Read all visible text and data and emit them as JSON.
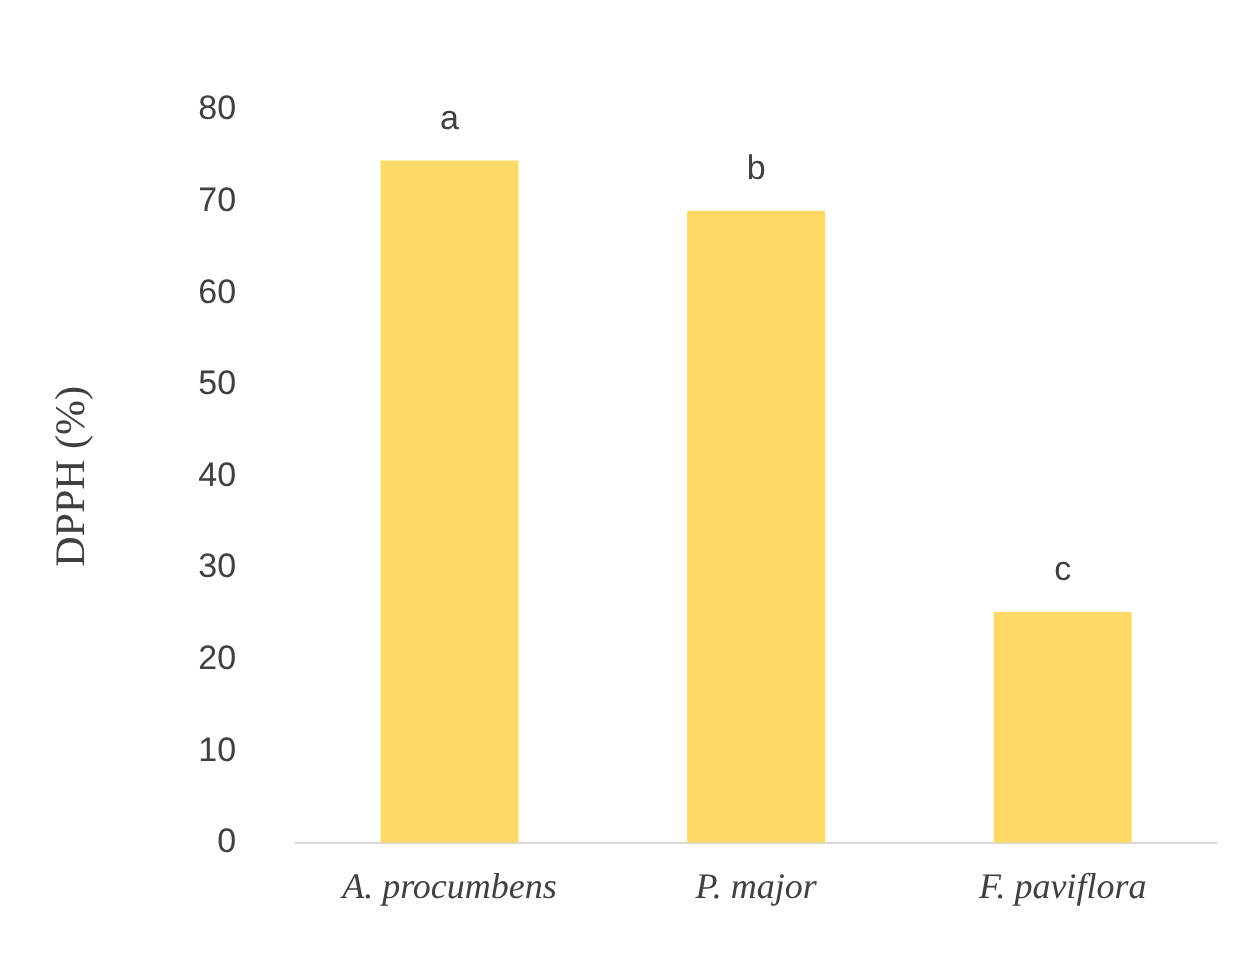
{
  "chart_data": {
    "type": "bar",
    "ylabel": "DPPH (%)",
    "categories": [
      "A. procumbens",
      "P. major",
      "F. paviflora"
    ],
    "values": [
      74.5,
      69.0,
      25.2
    ],
    "color": "#ffd966",
    "ylim": [
      0,
      80
    ],
    "yticks": [
      0,
      10,
      20,
      30,
      40,
      50,
      60,
      70,
      80
    ],
    "grid": false,
    "legend": false,
    "annotations": [
      {
        "text": "a",
        "x": "A. procumbens",
        "y": 74.5
      },
      {
        "text": "b",
        "x": "P. major",
        "y": 69.0
      },
      {
        "text": "c",
        "x": "F. paviflora",
        "y": 25.2
      }
    ]
  }
}
